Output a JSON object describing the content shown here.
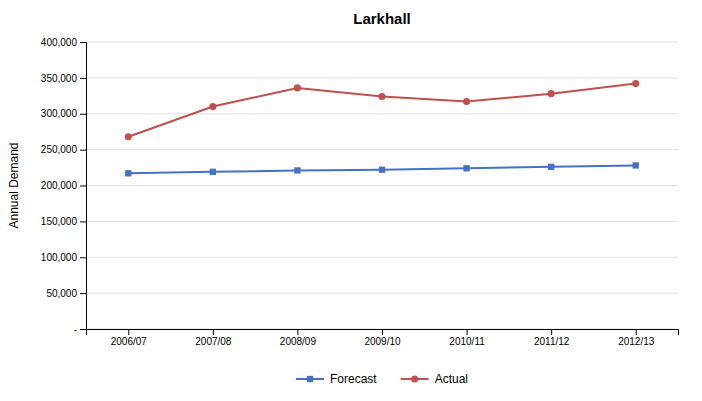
{
  "chart_data": {
    "type": "line",
    "title": "Larkhall",
    "ylabel": "Annual Demand",
    "categories": [
      "2006/07",
      "2007/08",
      "2008/09",
      "2009/10",
      "2010/11",
      "2011/12",
      "2012/13"
    ],
    "series": [
      {
        "name": "Forecast",
        "color": "#4472C4",
        "marker": "square",
        "values": [
          217000,
          219000,
          221000,
          222000,
          224000,
          226000,
          228000
        ]
      },
      {
        "name": "Actual",
        "color": "#C0504D",
        "marker": "circle",
        "values": [
          268000,
          310000,
          336000,
          324000,
          317000,
          328000,
          342000
        ]
      }
    ],
    "ylim": [
      0,
      400000
    ],
    "yticks": [
      {
        "value": 0,
        "label": "-"
      },
      {
        "value": 50000,
        "label": "50,000"
      },
      {
        "value": 100000,
        "label": "100,000"
      },
      {
        "value": 150000,
        "label": "150,000"
      },
      {
        "value": 200000,
        "label": "200,000"
      },
      {
        "value": 250000,
        "label": "250,000"
      },
      {
        "value": 300000,
        "label": "300,000"
      },
      {
        "value": 350000,
        "label": "350,000"
      },
      {
        "value": 400000,
        "label": "400,000"
      }
    ],
    "grid": true,
    "legend": "bottom"
  }
}
